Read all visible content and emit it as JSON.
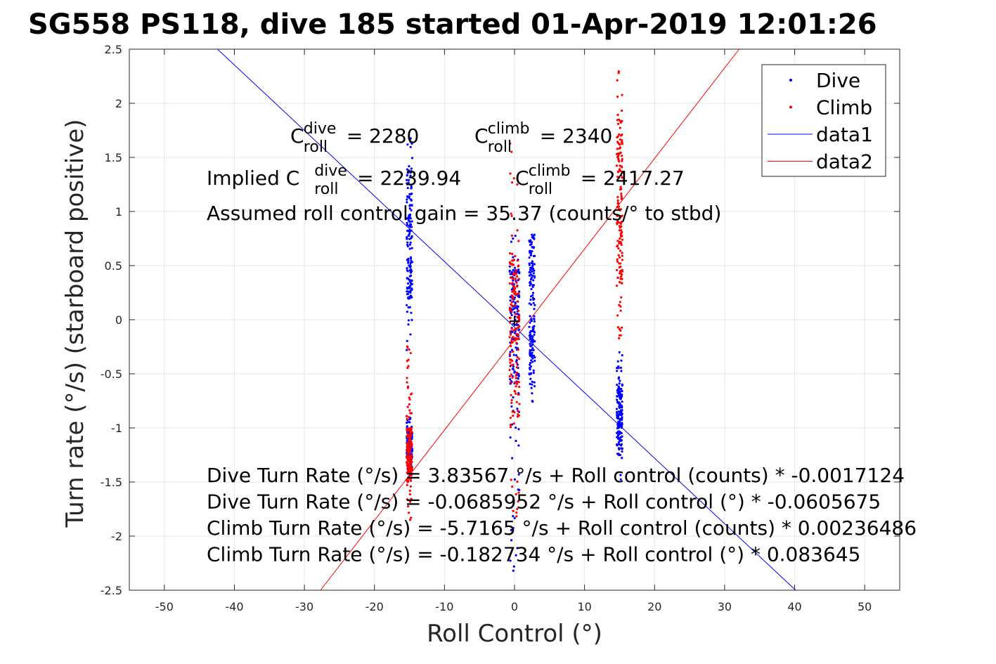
{
  "chart_data": {
    "type": "scatter",
    "title": "SG558 PS118, dive 185 started 01-Apr-2019 12:01:26",
    "xlabel": "Roll Control (°)",
    "ylabel": "Turn rate (°/s) (starboard positive)",
    "xlim": [
      -55,
      55
    ],
    "ylim": [
      -2.5,
      2.5
    ],
    "grid": true,
    "x_ticks": [
      "-50",
      "-40",
      "-30",
      "-20",
      "-10",
      "0",
      "10",
      "20",
      "30",
      "40",
      "50"
    ],
    "y_ticks": [
      "2.5",
      "2",
      "1.5",
      "1",
      "0.5",
      "0",
      "-0.5",
      "-1",
      "-1.5",
      "-2",
      "-2.5"
    ],
    "legend": {
      "placement": "top-right",
      "entries": [
        {
          "label": "Dive",
          "marker": "dot",
          "color": "#0000ff"
        },
        {
          "label": "Climb",
          "marker": "dot",
          "color": "#ff0000"
        },
        {
          "label": "data1",
          "marker": "line",
          "color": "#0000ff"
        },
        {
          "label": "data2",
          "marker": "line",
          "color": "#ff0000"
        }
      ]
    },
    "series": [
      {
        "name": "Dive",
        "kind": "points",
        "color": "#0000ff",
        "clusters": [
          {
            "x": -15,
            "y_range": [
              -0.3,
              1.7
            ],
            "dense_range": [
              0.2,
              1.4
            ]
          },
          {
            "x": -15,
            "y_range": [
              -1.4,
              -0.9
            ],
            "dense_range": [
              -1.3,
              -1.0
            ]
          },
          {
            "x": 0,
            "y_range": [
              -2.5,
              0.9
            ],
            "dense_range": [
              -0.6,
              0.5
            ]
          },
          {
            "x": 2.5,
            "y_range": [
              -0.8,
              0.8
            ],
            "dense_range": [
              -0.6,
              0.8
            ]
          },
          {
            "x": 15,
            "y_range": [
              -1.55,
              -0.3
            ],
            "dense_range": [
              -1.2,
              -0.6
            ]
          }
        ]
      },
      {
        "name": "Climb",
        "kind": "points",
        "color": "#ff0000",
        "clusters": [
          {
            "x": -15,
            "y_range": [
              -1.85,
              -0.2
            ],
            "dense_range": [
              -1.5,
              -1.0
            ]
          },
          {
            "x": 0,
            "y_range": [
              -1.95,
              1.7
            ],
            "dense_range": [
              -1.0,
              0.6
            ]
          },
          {
            "x": 15,
            "y_range": [
              -0.2,
              2.3
            ],
            "dense_range": [
              0.3,
              1.9
            ]
          }
        ]
      },
      {
        "name": "data1",
        "kind": "line",
        "color": "#0000ff",
        "intercept": -0.0685952,
        "slope": -0.0605675
      },
      {
        "name": "data2",
        "kind": "line",
        "color": "#ff0000",
        "intercept": -0.182734,
        "slope": 0.083645
      }
    ],
    "annotations": {
      "c_dive": {
        "base": "C",
        "sup": "dive",
        "sub": "roll",
        "rest": " = 2280"
      },
      "c_climb": {
        "base": "C",
        "sup": "climb",
        "sub": "roll",
        "rest": " = 2340"
      },
      "implied_dive": {
        "prefix": "Implied C",
        "sup": "dive",
        "sub": "roll",
        "rest": " = 2239.94"
      },
      "implied_climb": {
        "base": "C",
        "sup": "climb",
        "sub": "roll",
        "rest": " = 2417.27"
      },
      "gain": "Assumed roll control gain = 35.37 (counts/° to stbd)",
      "equations": [
        "Dive Turn Rate (°/s) = 3.83567 °/s + Roll control (counts) * -0.0017124",
        "Dive Turn Rate (°/s) = -0.0685952 °/s + Roll control (°) * -0.0605675",
        "Climb Turn Rate (°/s) = -5.7165 °/s + Roll control (counts) * 0.00236486",
        "Climb Turn Rate (°/s) = -0.182734 °/s + Roll control (°) * 0.083645"
      ],
      "zero_marker": "+"
    }
  }
}
